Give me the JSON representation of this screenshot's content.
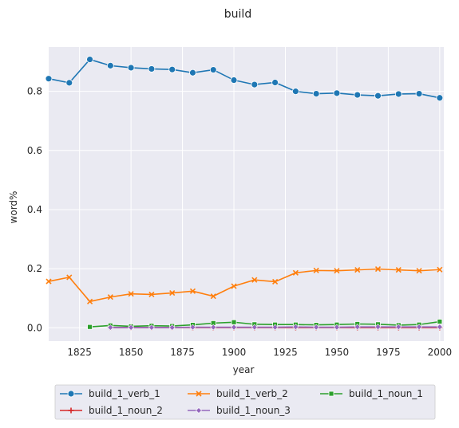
{
  "chart_data": {
    "type": "line",
    "title": "build",
    "xlabel": "year",
    "ylabel": "word%",
    "xlim": [
      1810,
      2002
    ],
    "ylim": [
      -0.045,
      0.95
    ],
    "xticks": [
      1825,
      1850,
      1875,
      1900,
      1925,
      1950,
      1975,
      2000
    ],
    "yticks": [
      0.0,
      0.2,
      0.4,
      0.6,
      0.8
    ],
    "ytick_labels": [
      "0.0",
      "0.2",
      "0.4",
      "0.6",
      "0.8"
    ],
    "grid": true,
    "legend_position": "bottom",
    "colors": {
      "background": "#eaeaf2",
      "grid": "#ffffff",
      "build_1_verb_1": "#1f77b4",
      "build_1_verb_2": "#ff7f0e",
      "build_1_noun_1": "#2ca02c",
      "build_1_noun_2": "#d62728",
      "build_1_noun_3": "#9467bd"
    },
    "series": [
      {
        "name": "build_1_verb_1",
        "marker": "circle",
        "x": [
          1810,
          1820,
          1830,
          1840,
          1850,
          1860,
          1870,
          1880,
          1890,
          1900,
          1910,
          1920,
          1930,
          1940,
          1950,
          1960,
          1970,
          1980,
          1990,
          2000
        ],
        "values": [
          0.843,
          0.829,
          0.908,
          0.887,
          0.88,
          0.876,
          0.874,
          0.863,
          0.873,
          0.838,
          0.823,
          0.83,
          0.8,
          0.792,
          0.794,
          0.788,
          0.785,
          0.791,
          0.792,
          0.778
        ]
      },
      {
        "name": "build_1_verb_2",
        "marker": "x",
        "x": [
          1810,
          1820,
          1830,
          1840,
          1850,
          1860,
          1870,
          1880,
          1890,
          1900,
          1910,
          1920,
          1930,
          1940,
          1950,
          1960,
          1970,
          1980,
          1990,
          2000
        ],
        "values": [
          0.157,
          0.171,
          0.089,
          0.104,
          0.115,
          0.113,
          0.118,
          0.124,
          0.107,
          0.141,
          0.162,
          0.156,
          0.186,
          0.194,
          0.193,
          0.196,
          0.199,
          0.196,
          0.193,
          0.197
        ]
      },
      {
        "name": "build_1_noun_1",
        "marker": "square",
        "x": [
          1830,
          1840,
          1850,
          1860,
          1870,
          1880,
          1890,
          1900,
          1910,
          1920,
          1930,
          1940,
          1950,
          1960,
          1970,
          1980,
          1990,
          2000
        ],
        "values": [
          0.003,
          0.008,
          0.005,
          0.007,
          0.006,
          0.01,
          0.016,
          0.019,
          0.012,
          0.011,
          0.011,
          0.01,
          0.011,
          0.013,
          0.012,
          0.009,
          0.011,
          0.021
        ]
      },
      {
        "name": "build_1_noun_2",
        "marker": "plus",
        "x": [
          1840,
          1850,
          1860,
          1870,
          1880,
          1890,
          1900,
          1910,
          1920,
          1930,
          1940,
          1950,
          1960,
          1970,
          1980,
          1990,
          2000
        ],
        "values": [
          0.001,
          0.001,
          0.001,
          0.001,
          0.001,
          0.001,
          0.001,
          0.001,
          0.001,
          0.001,
          0.001,
          0.001,
          0.001,
          0.001,
          0.001,
          0.001,
          0.001
        ]
      },
      {
        "name": "build_1_noun_3",
        "marker": "diamond",
        "x": [
          1840,
          1850,
          1860,
          1870,
          1880,
          1890,
          1900,
          1910,
          1920,
          1930,
          1940,
          1950,
          1960,
          1970,
          1980,
          1990,
          2000
        ],
        "values": [
          0.001,
          0.001,
          0.001,
          0.001,
          0.002,
          0.002,
          0.002,
          0.002,
          0.002,
          0.003,
          0.002,
          0.002,
          0.003,
          0.003,
          0.003,
          0.003,
          0.003
        ]
      }
    ]
  }
}
